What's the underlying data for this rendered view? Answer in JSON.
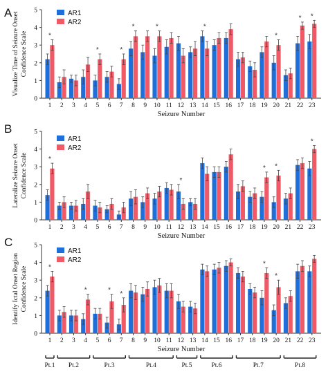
{
  "colors": {
    "ar1": "#1e6fd9",
    "ar2": "#ef5a66",
    "axis": "#333333"
  },
  "chart_data": [
    {
      "type": "bar",
      "panel_letter": "A",
      "ylabel_line1": "Visualize Time of Seizure Onset",
      "ylabel_line2": "Confidence Scale",
      "xlabel": "Seizure Number",
      "ylim": [
        0,
        5
      ],
      "yticks": [
        "0",
        "1",
        "2",
        "3",
        "4",
        "5"
      ],
      "categories": [
        "1",
        "2",
        "3",
        "4",
        "5",
        "6",
        "7",
        "8",
        "9",
        "10",
        "11",
        "12",
        "13",
        "14",
        "15",
        "16",
        "17",
        "18",
        "19",
        "20",
        "21",
        "22",
        "23"
      ],
      "series": [
        {
          "name": "AR1",
          "values": [
            2.2,
            0.9,
            1.1,
            1.2,
            1.0,
            1.2,
            0.8,
            2.8,
            2.6,
            2.4,
            2.9,
            3.1,
            2.6,
            3.5,
            3.0,
            3.4,
            2.2,
            1.8,
            2.6,
            2.0,
            1.3,
            3.1,
            3.2
          ],
          "errors": [
            0.3,
            0.3,
            0.2,
            0.4,
            0.3,
            0.3,
            0.3,
            0.4,
            0.4,
            0.4,
            0.4,
            0.4,
            0.3,
            0.3,
            0.3,
            0.3,
            0.4,
            0.3,
            0.3,
            0.4,
            0.3,
            0.4,
            0.4
          ]
        },
        {
          "name": "AR2",
          "values": [
            3.0,
            1.2,
            1.0,
            1.9,
            2.2,
            1.5,
            2.2,
            3.5,
            3.5,
            3.5,
            3.4,
            2.4,
            2.8,
            2.8,
            3.4,
            3.9,
            2.3,
            1.6,
            3.2,
            3.0,
            1.4,
            4.1,
            4.2
          ],
          "errors": [
            0.3,
            0.4,
            0.3,
            0.4,
            0.3,
            0.3,
            0.3,
            0.3,
            0.3,
            0.3,
            0.3,
            0.4,
            0.4,
            0.4,
            0.3,
            0.3,
            0.3,
            0.4,
            0.3,
            0.3,
            0.3,
            0.2,
            0.2
          ]
        }
      ],
      "significant": [
        "1",
        "5",
        "7",
        "8",
        "10",
        "14",
        "20",
        "22",
        "23"
      ],
      "legend": "top-left"
    },
    {
      "type": "bar",
      "panel_letter": "B",
      "ylabel_line1": "Lateralize Seizure Onset",
      "ylabel_line2": "Confidence Scale",
      "xlabel": "Seizure Number",
      "ylim": [
        0,
        5
      ],
      "yticks": [
        "0",
        "1",
        "2",
        "3",
        "4",
        "5"
      ],
      "categories": [
        "1",
        "2",
        "3",
        "4",
        "5",
        "6",
        "7",
        "8",
        "9",
        "10",
        "11",
        "12",
        "13",
        "14",
        "15",
        "16",
        "17",
        "18",
        "19",
        "20",
        "21",
        "22",
        "23"
      ],
      "series": [
        {
          "name": "AR1",
          "values": [
            1.4,
            0.8,
            0.8,
            0.9,
            0.8,
            0.6,
            0.3,
            1.2,
            1.0,
            1.2,
            1.8,
            1.6,
            1.0,
            3.2,
            2.7,
            3.0,
            1.6,
            1.3,
            1.3,
            1.0,
            1.2,
            3.1,
            2.9
          ],
          "errors": [
            0.3,
            0.2,
            0.2,
            0.3,
            0.3,
            0.2,
            0.2,
            0.4,
            0.3,
            0.3,
            0.3,
            0.4,
            0.2,
            0.3,
            0.3,
            0.3,
            0.4,
            0.3,
            0.3,
            0.3,
            0.3,
            0.3,
            0.4
          ]
        },
        {
          "name": "AR2",
          "values": [
            2.9,
            1.0,
            0.8,
            1.6,
            0.7,
            0.9,
            0.7,
            1.3,
            1.5,
            1.6,
            1.7,
            0.9,
            0.9,
            2.6,
            2.7,
            3.7,
            1.9,
            1.5,
            2.4,
            2.5,
            1.5,
            3.2,
            4.0
          ],
          "errors": [
            0.3,
            0.3,
            0.3,
            0.4,
            0.3,
            0.3,
            0.3,
            0.4,
            0.3,
            0.3,
            0.3,
            0.3,
            0.3,
            0.4,
            0.3,
            0.3,
            0.3,
            0.3,
            0.3,
            0.3,
            0.3,
            0.3,
            0.2
          ]
        }
      ],
      "significant": [
        "1",
        "12",
        "19",
        "20",
        "23"
      ],
      "legend": "top-left"
    },
    {
      "type": "bar",
      "panel_letter": "C",
      "ylabel_line1": "Identify Ictal Onset Region",
      "ylabel_line2": "Confidence Scale",
      "xlabel": "Seizure Number",
      "ylim": [
        0,
        5
      ],
      "yticks": [
        "0",
        "1",
        "2",
        "3",
        "4",
        "5"
      ],
      "categories": [
        "1",
        "2",
        "3",
        "4",
        "5",
        "6",
        "7",
        "8",
        "9",
        "10",
        "11",
        "12",
        "13",
        "14",
        "15",
        "16",
        "17",
        "18",
        "19",
        "20",
        "21",
        "22",
        "23"
      ],
      "series": [
        {
          "name": "AR1",
          "values": [
            2.4,
            1.0,
            1.0,
            0.8,
            1.1,
            0.6,
            0.5,
            2.4,
            2.2,
            2.6,
            2.4,
            1.8,
            1.5,
            3.6,
            3.6,
            3.8,
            3.4,
            2.5,
            2.0,
            1.3,
            1.7,
            3.5,
            3.5
          ],
          "errors": [
            0.3,
            0.3,
            0.3,
            0.3,
            0.3,
            0.3,
            0.3,
            0.4,
            0.4,
            0.4,
            0.4,
            0.4,
            0.3,
            0.3,
            0.3,
            0.3,
            0.3,
            0.3,
            0.4,
            0.3,
            0.3,
            0.4,
            0.3
          ]
        },
        {
          "name": "AR2",
          "values": [
            3.2,
            1.2,
            1.0,
            1.9,
            1.1,
            1.8,
            1.6,
            2.3,
            2.5,
            2.7,
            2.4,
            1.5,
            1.4,
            3.5,
            3.7,
            4.0,
            3.2,
            2.3,
            3.4,
            2.6,
            2.1,
            3.8,
            4.2
          ],
          "errors": [
            0.3,
            0.3,
            0.3,
            0.3,
            0.3,
            0.4,
            0.4,
            0.4,
            0.4,
            0.4,
            0.4,
            0.3,
            0.3,
            0.3,
            0.3,
            0.2,
            0.3,
            0.3,
            0.3,
            0.4,
            0.3,
            0.3,
            0.2
          ]
        }
      ],
      "significant": [
        "1",
        "4",
        "6",
        "7",
        "19",
        "20"
      ],
      "legend": "top-left"
    }
  ],
  "patients": [
    {
      "label": "Pt.1",
      "from": "1",
      "to": "1"
    },
    {
      "label": "Pt.2",
      "from": "2",
      "to": "4"
    },
    {
      "label": "Pt.3",
      "from": "5",
      "to": "7"
    },
    {
      "label": "Pt.4",
      "from": "8",
      "to": "11"
    },
    {
      "label": "Pt.5",
      "from": "12",
      "to": "13"
    },
    {
      "label": "Pt.6",
      "from": "14",
      "to": "16"
    },
    {
      "label": "Pt.7",
      "from": "17",
      "to": "20"
    },
    {
      "label": "Pt.8",
      "from": "21",
      "to": "23"
    }
  ],
  "significance_marker": "*"
}
